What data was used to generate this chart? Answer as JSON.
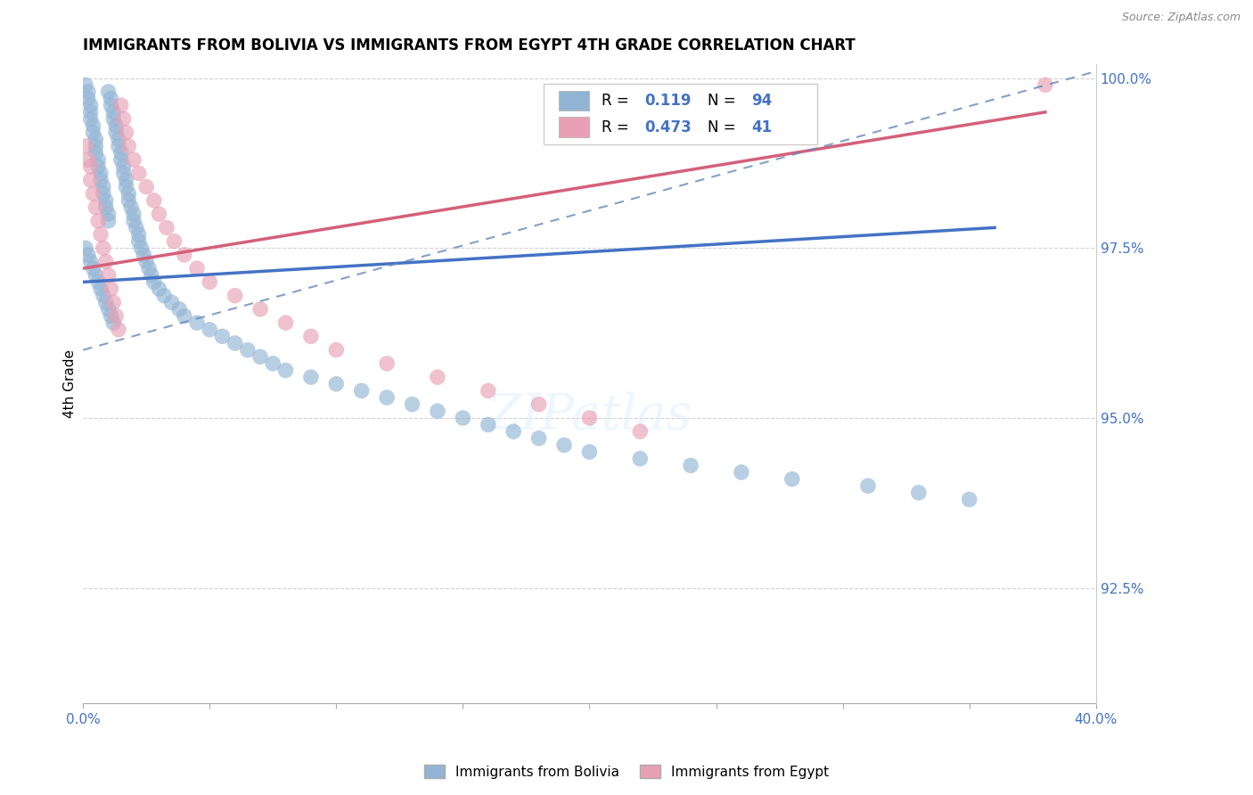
{
  "title": "IMMIGRANTS FROM BOLIVIA VS IMMIGRANTS FROM EGYPT 4TH GRADE CORRELATION CHART",
  "source_text": "Source: ZipAtlas.com",
  "ylabel": "4th Grade",
  "xlim": [
    0.0,
    0.4
  ],
  "ylim": [
    0.908,
    1.002
  ],
  "yticks": [
    0.925,
    0.95,
    0.975,
    1.0
  ],
  "ytick_labels": [
    "92.5%",
    "95.0%",
    "97.5%",
    "100.0%"
  ],
  "xtick_positions": [
    0.0,
    0.05,
    0.1,
    0.15,
    0.2,
    0.25,
    0.3,
    0.35,
    0.4
  ],
  "xtick_labels": [
    "0.0%",
    "",
    "",
    "",
    "",
    "",
    "",
    "",
    "40.0%"
  ],
  "bolivia_color": "#92b4d4",
  "egypt_color": "#e8a0b4",
  "trend_bolivia_color": "#4472C4",
  "trend_egypt_color": "#D4607A",
  "trend_dashed_color": "#6688BB",
  "r_value_color": "#4472C4",
  "n_value_color": "#4472C4",
  "axis_label_color": "#4472C4",
  "legend_label_bolivia": "Immigrants from Bolivia",
  "legend_label_egypt": "Immigrants from Egypt"
}
